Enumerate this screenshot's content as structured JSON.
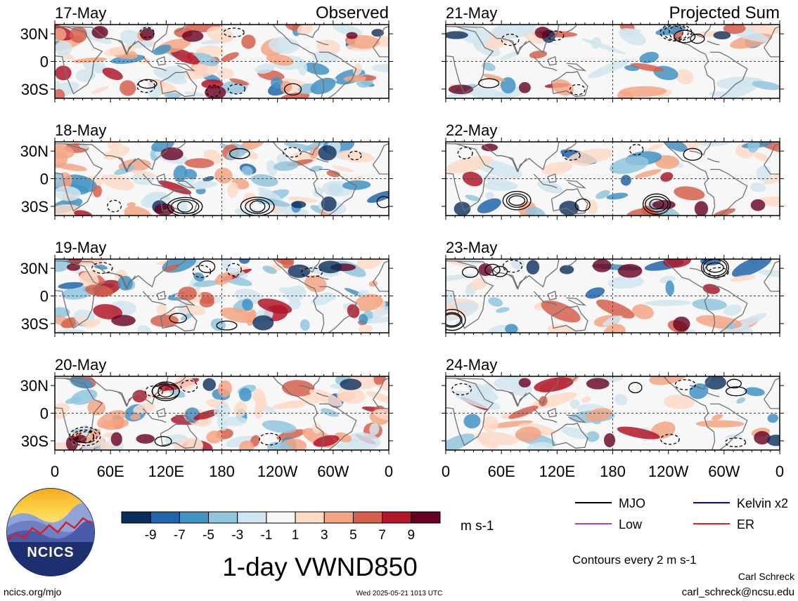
{
  "columns": {
    "left_label": "Observed",
    "right_label": "Projected Sum"
  },
  "panels": {
    "left": [
      "17-May",
      "18-May",
      "19-May",
      "20-May"
    ],
    "right": [
      "21-May",
      "22-May",
      "23-May",
      "24-May"
    ]
  },
  "axes": {
    "lat_ticks": [
      "30N",
      "0",
      "30S"
    ],
    "lon_ticks": [
      "0",
      "60E",
      "120E",
      "180",
      "120W",
      "60W",
      "0"
    ]
  },
  "colorbar": {
    "tick_labels": [
      "-9",
      "-7",
      "-5",
      "-3",
      "-1",
      "1",
      "3",
      "5",
      "7",
      "9"
    ],
    "unit": "m s-1",
    "colors": [
      "#0b2d5c",
      "#2166ac",
      "#4393c3",
      "#92c5de",
      "#d1e5f0",
      "#f7f7f7",
      "#fddbc7",
      "#f4a582",
      "#d6604d",
      "#b2182b",
      "#67001f"
    ]
  },
  "legend": {
    "items": [
      {
        "label": "MJO",
        "color": "#000000"
      },
      {
        "label": "Kelvin x2",
        "color": "#0000ff"
      },
      {
        "label": "Low",
        "color": "#a040e0"
      },
      {
        "label": "ER",
        "color": "#e02020"
      }
    ],
    "contours_note": "Contours every 2 m s-1"
  },
  "footer": {
    "title": "1-day VWND850",
    "logo_text": "NCICS",
    "site": "ncics.org/mjo",
    "timestamp": "Wed 2025-05-21 1013 UTC",
    "author": "Carl Schreck",
    "email": "carl_schreck@ncsu.edu"
  }
}
